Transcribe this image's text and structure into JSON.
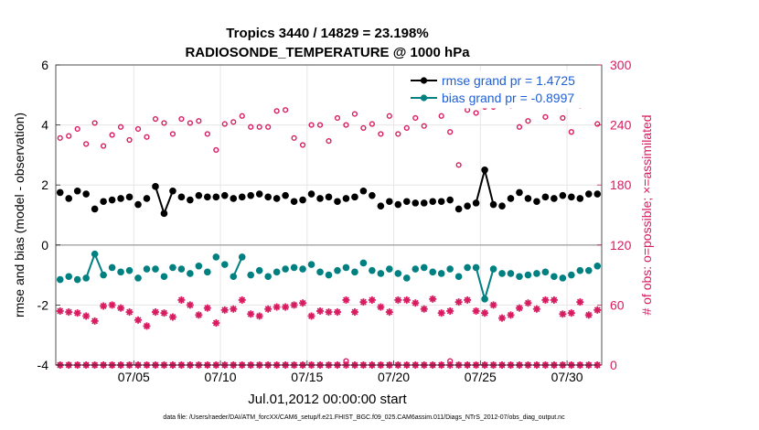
{
  "chart_data": {
    "type": "line",
    "title_line1": "Tropics 3440 / 14829 = 23.198%",
    "title_line2": "RADIOSONDE_TEMPERATURE @ 1000 hPa",
    "xlabel": "Jul.01,2012 00:00:00 start",
    "ylabel_left": "rmse and bias (model - observation)",
    "ylabel_right": "# of obs: o=possible; ×=assimilated",
    "footnote": "data file: /Users/raeder/DAI/ATM_forcXX/CAM6_setup/f.e21.FHIST_BGC.f09_025.CAM6assim.011/Diags_NTrS_2012-07/obs_diag_output.nc",
    "xlim": [
      0.5,
      32.0
    ],
    "ylim_left": [
      -4,
      6
    ],
    "ylim_right": [
      0,
      300
    ],
    "x_ticks": [
      5,
      10,
      15,
      20,
      25,
      30
    ],
    "x_tick_labels": [
      "07/05",
      "07/10",
      "07/15",
      "07/20",
      "07/25",
      "07/30"
    ],
    "y_left_ticks": [
      -4,
      -2,
      0,
      2,
      4,
      6
    ],
    "y_left_tick_labels": [
      "-4",
      "-2",
      "0",
      "2",
      "4",
      "6"
    ],
    "y_right_ticks": [
      0,
      60,
      120,
      180,
      240,
      300
    ],
    "y_right_tick_labels": [
      "0",
      "60",
      "120",
      "180",
      "240",
      "300"
    ],
    "legend": {
      "position": "top-right",
      "entries": [
        {
          "label": "rmse grand pr = 1.4725",
          "series": "rmse"
        },
        {
          "label": "bias grand pr = -0.8997",
          "series": "bias"
        }
      ]
    },
    "colors": {
      "rmse": "#000000",
      "bias": "#008080",
      "obs": "#d81b60",
      "zero_line": "#b0b0b0",
      "grid": "#e6e6e6",
      "legend_text": "#1f5fd6"
    },
    "x": [
      0.75,
      1.25,
      1.75,
      2.25,
      2.75,
      3.25,
      3.75,
      4.25,
      4.75,
      5.25,
      5.75,
      6.25,
      6.75,
      7.25,
      7.75,
      8.25,
      8.75,
      9.25,
      9.75,
      10.25,
      10.75,
      11.25,
      11.75,
      12.25,
      12.75,
      13.25,
      13.75,
      14.25,
      14.75,
      15.25,
      15.75,
      16.25,
      16.75,
      17.25,
      17.75,
      18.25,
      18.75,
      19.25,
      19.75,
      20.25,
      20.75,
      21.25,
      21.75,
      22.25,
      22.75,
      23.25,
      23.75,
      24.25,
      24.75,
      25.25,
      25.75,
      26.25,
      26.75,
      27.25,
      27.75,
      28.25,
      28.75,
      29.25,
      29.75,
      30.25,
      30.75,
      31.25,
      31.75
    ],
    "series": [
      {
        "name": "rmse",
        "axis": "left",
        "values": [
          1.75,
          1.55,
          1.8,
          1.7,
          1.2,
          1.45,
          1.5,
          1.55,
          1.6,
          1.35,
          1.55,
          1.95,
          1.05,
          1.8,
          1.6,
          1.5,
          1.65,
          1.6,
          1.6,
          1.65,
          1.55,
          1.6,
          1.65,
          1.7,
          1.6,
          1.55,
          1.65,
          1.45,
          1.5,
          1.7,
          1.55,
          1.6,
          1.45,
          1.55,
          1.6,
          1.8,
          1.65,
          1.3,
          1.45,
          1.35,
          1.45,
          1.4,
          1.4,
          1.45,
          1.45,
          1.5,
          1.2,
          1.3,
          1.4,
          2.5,
          1.35,
          1.3,
          1.55,
          1.75,
          1.55,
          1.45,
          1.6,
          1.55,
          1.65,
          1.6,
          1.55,
          1.7,
          1.7
        ]
      },
      {
        "name": "bias",
        "axis": "left",
        "values": [
          -1.15,
          -1.05,
          -1.15,
          -1.1,
          -0.3,
          -1.0,
          -0.75,
          -0.9,
          -0.85,
          -1.1,
          -0.8,
          -0.8,
          -1.05,
          -0.75,
          -0.8,
          -0.95,
          -0.7,
          -0.9,
          -0.4,
          -0.65,
          -1.05,
          -0.4,
          -1.0,
          -0.85,
          -1.05,
          -0.9,
          -0.8,
          -0.75,
          -0.8,
          -0.65,
          -0.9,
          -1.0,
          -0.85,
          -0.75,
          -0.9,
          -0.6,
          -0.85,
          -0.95,
          -0.8,
          -0.95,
          -1.1,
          -0.8,
          -0.75,
          -0.9,
          -0.95,
          -0.8,
          -1.05,
          -0.75,
          -0.75,
          -1.8,
          -0.8,
          -0.95,
          -0.95,
          -1.05,
          -1.0,
          -0.95,
          -0.9,
          -1.05,
          -1.1,
          -1.0,
          -0.85,
          -0.85,
          -0.7
        ]
      },
      {
        "name": "possible",
        "axis": "right",
        "values": [
          227,
          229,
          236,
          221,
          242,
          219,
          230,
          238,
          225,
          236,
          228,
          246,
          242,
          231,
          246,
          242,
          244,
          231,
          215,
          241,
          243,
          249,
          238,
          238,
          238,
          254,
          255,
          227,
          220,
          240,
          240,
          224,
          247,
          240,
          251,
          237,
          241,
          231,
          249,
          231,
          237,
          247,
          239,
          262,
          249,
          233,
          200,
          255,
          252,
          258,
          258,
          268,
          259,
          238,
          244,
          269,
          248,
          264,
          247,
          233,
          259,
          262,
          241
        ]
      },
      {
        "name": "assimilated",
        "axis": "right",
        "values": [
          54,
          53,
          52,
          49,
          44,
          59,
          60,
          57,
          53,
          45,
          39,
          53,
          52,
          48,
          65,
          60,
          50,
          57,
          42,
          55,
          56,
          65,
          51,
          49,
          56,
          58,
          58,
          60,
          62,
          49,
          54,
          53,
          53,
          65,
          53,
          63,
          65,
          58,
          53,
          65,
          65,
          62,
          56,
          66,
          52,
          54,
          63,
          65,
          54,
          52,
          60,
          47,
          50,
          57,
          62,
          56,
          65,
          65,
          51,
          52,
          63,
          50,
          55
        ]
      },
      {
        "name": "possible_bottom",
        "axis": "right",
        "values": [
          0,
          0,
          0,
          0,
          0,
          0,
          0,
          0,
          0,
          0,
          0,
          0,
          0,
          0,
          0,
          0,
          0,
          0,
          0,
          0,
          0,
          0,
          0,
          0,
          0,
          0,
          0,
          0,
          0,
          0,
          0,
          0,
          0,
          4,
          0,
          0,
          0,
          0,
          0,
          0,
          0,
          0,
          0,
          0,
          0,
          4,
          0,
          0,
          0,
          0,
          0,
          0,
          0,
          0,
          0,
          0,
          0,
          0,
          0,
          0,
          0,
          0,
          0
        ]
      },
      {
        "name": "assimilated_bottom",
        "axis": "right",
        "values": [
          0,
          0,
          0,
          0,
          0,
          0,
          0,
          0,
          0,
          0,
          0,
          0,
          0,
          0,
          0,
          0,
          0,
          0,
          0,
          0,
          0,
          0,
          0,
          0,
          0,
          0,
          0,
          0,
          0,
          0,
          0,
          0,
          0,
          0,
          0,
          0,
          0,
          0,
          0,
          0,
          0,
          0,
          0,
          0,
          0,
          0,
          0,
          0,
          0,
          0,
          0,
          0,
          0,
          0,
          0,
          0,
          0,
          0,
          0,
          0,
          0,
          0,
          0
        ]
      }
    ]
  }
}
